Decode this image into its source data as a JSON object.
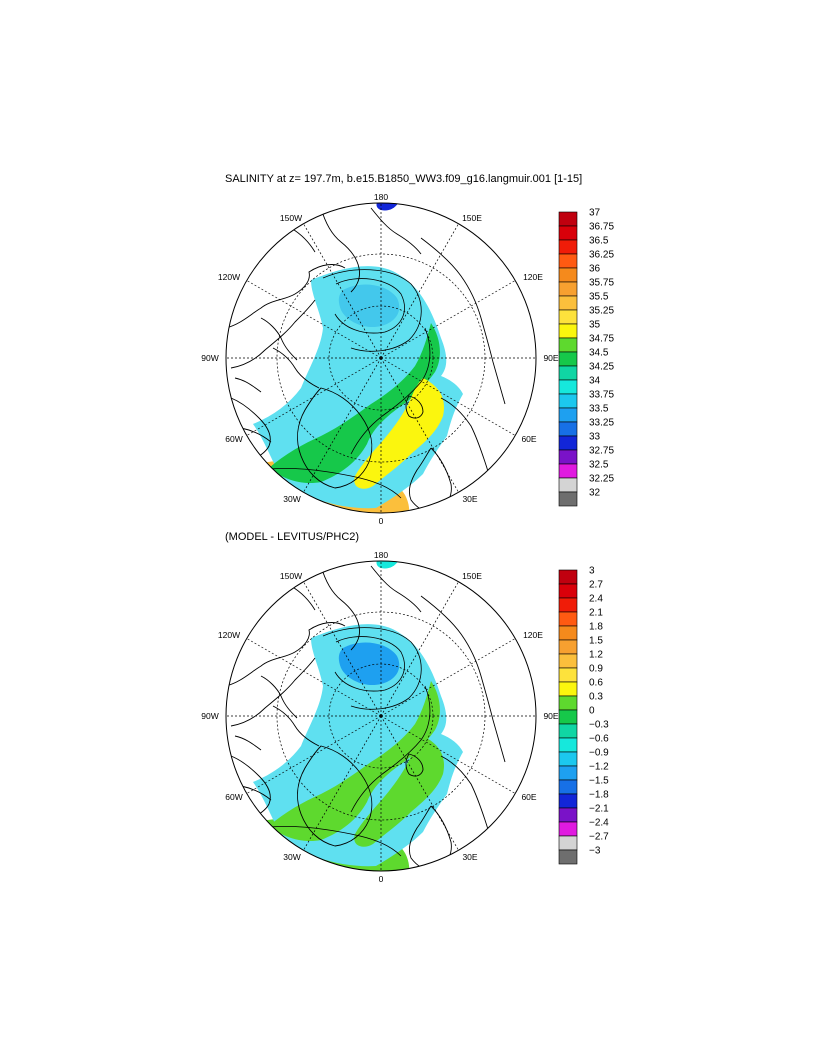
{
  "panels": [
    {
      "title": "SALINITY at z= 197.7m, b.e15.B1850_WW3.f09_g16.langmuir.001 [1-15]",
      "lon_labels": {
        "top": "180",
        "top_left": "150W",
        "top_right": "150E",
        "upper_left": "120W",
        "upper_right": "120E",
        "left": "90W",
        "right": "90E",
        "lower_left": "60W",
        "lower_right": "60E",
        "bottom_left": "30W",
        "bottom_right": "30E",
        "bottom": "0"
      },
      "colorbar": {
        "labels": [
          "37",
          "36.75",
          "36.5",
          "36.25",
          "36",
          "35.75",
          "35.5",
          "35.25",
          "35",
          "34.75",
          "34.5",
          "34.25",
          "34",
          "33.75",
          "33.5",
          "33.25",
          "33",
          "32.75",
          "32.5",
          "32.25",
          "32"
        ],
        "colors": [
          "#c0000f",
          "#d9000a",
          "#f01c08",
          "#ff5a12",
          "#f58a1c",
          "#f7a030",
          "#fbbf3c",
          "#fde23c",
          "#fbf60e",
          "#5ed92e",
          "#16c84a",
          "#10d6a4",
          "#16e8dc",
          "#1cc8ee",
          "#1ea0f0",
          "#1770e6",
          "#1226d8",
          "#7a12c8",
          "#e01ae0",
          "#d4d4d4"
        ]
      },
      "fields": {
        "ocean_main": "#5fe0f0",
        "central_basin": "#43c8ec",
        "atlantic_inflow": "#16c84a",
        "norwegian": "#fbf60e",
        "north_atlantic": "#fbbf3c",
        "bering_low": "#1226d8"
      }
    },
    {
      "title": "(MODEL - LEVITUS/PHC2)",
      "lon_labels": {
        "top": "180",
        "top_left": "150W",
        "top_right": "150E",
        "upper_left": "120W",
        "upper_right": "120E",
        "left": "90W",
        "right": "90E",
        "lower_left": "60W",
        "lower_right": "60E",
        "bottom_left": "30W",
        "bottom_right": "30E",
        "bottom": "0"
      },
      "colorbar": {
        "labels": [
          "3",
          "2.7",
          "2.4",
          "2.1",
          "1.8",
          "1.5",
          "1.2",
          "0.9",
          "0.6",
          "0.3",
          "0",
          "−0.3",
          "−0.6",
          "−0.9",
          "−1.2",
          "−1.5",
          "−1.8",
          "−2.1",
          "−2.4",
          "−2.7",
          "−3"
        ],
        "colors": [
          "#c0000f",
          "#d9000a",
          "#f01c08",
          "#ff5a12",
          "#f58a1c",
          "#f7a030",
          "#fbbf3c",
          "#fde23c",
          "#fbf60e",
          "#5ed92e",
          "#16c84a",
          "#10d6a4",
          "#16e8dc",
          "#1cc8ee",
          "#1ea0f0",
          "#1770e6",
          "#1226d8",
          "#7a12c8",
          "#e01ae0",
          "#d4d4d4"
        ]
      },
      "fields": {
        "ocean_main": "#5fe0f0",
        "central_basin": "#1ea0f0",
        "atlantic_inflow": "#5ed92e",
        "norwegian": "#5ed92e",
        "north_atlantic": "#5ed92e",
        "bering_low": "#16e8dc"
      }
    }
  ],
  "colors": {
    "land": "#ffffff",
    "coast": "#000000",
    "grid": "#000000",
    "colorbar_end": "#6e6e6e"
  }
}
